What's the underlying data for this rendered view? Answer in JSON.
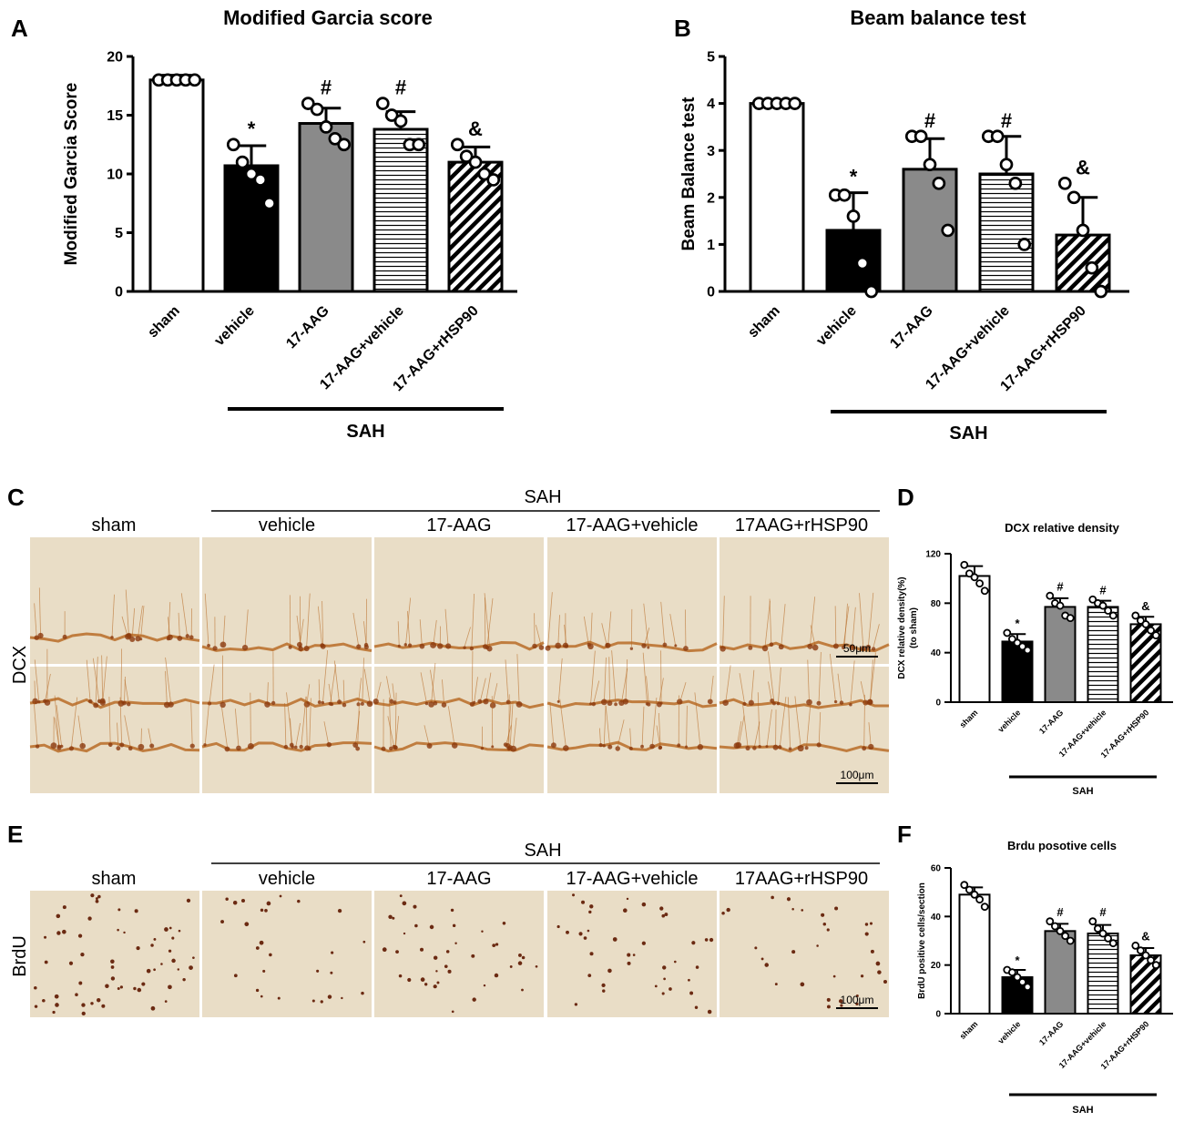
{
  "panels": {
    "A": {
      "letter": "A"
    },
    "B": {
      "letter": "B"
    },
    "C": {
      "letter": "C",
      "group_label": "SAH",
      "row_label": "DCX",
      "column_labels": [
        "sham",
        "vehicle",
        "17-AAG",
        "17-AAG+vehicle",
        "17AAG+rHSP90"
      ],
      "scale_bars": [
        "50μm",
        "100μm"
      ]
    },
    "D": {
      "letter": "D"
    },
    "E": {
      "letter": "E",
      "group_label": "SAH",
      "row_label": "BrdU",
      "column_labels": [
        "sham",
        "vehicle",
        "17-AAG",
        "17-AAG+vehicle",
        "17AAG+rHSP90"
      ],
      "scale_bars": [
        "100μm"
      ]
    },
    "F": {
      "letter": "F"
    }
  },
  "colors": {
    "sham": "#ffffff",
    "vehicle": "#000000",
    "17-AAG": "#8a8a8a",
    "stain_dcx": "#b5651d",
    "stain_brdu": "#6b2a12",
    "tissue_bg": "#e9ddc6"
  },
  "chart_data": [
    {
      "id": "A",
      "type": "bar",
      "title": "Modified Garcia score",
      "ylabel": "Modified Garcia Score",
      "xlabel": "",
      "categories": [
        "sham",
        "vehicle",
        "17-AAG",
        "17-AAG+vehicle",
        "17-AAG+rHSP90"
      ],
      "values": [
        18.0,
        10.7,
        14.3,
        13.8,
        11.0
      ],
      "errors": [
        0.4,
        1.7,
        1.3,
        1.5,
        1.3
      ],
      "points": [
        [
          18,
          18,
          18,
          18,
          18
        ],
        [
          12.5,
          11,
          10,
          9.5,
          7.5
        ],
        [
          16,
          15.5,
          14,
          13,
          12.5
        ],
        [
          16,
          15,
          14.5,
          12.5,
          12.5
        ],
        [
          12.5,
          11.5,
          11,
          10,
          9.5
        ]
      ],
      "fill_patterns": [
        "white",
        "black",
        "gray",
        "horizontal-lines",
        "diagonal-lines"
      ],
      "markers": [
        "",
        "*",
        "#",
        "#",
        "&"
      ],
      "ylim": [
        0,
        20
      ],
      "yticks": [
        0,
        5,
        10,
        15,
        20
      ],
      "group_bracket": {
        "label": "SAH",
        "from": "vehicle",
        "to": "17-AAG+rHSP90"
      }
    },
    {
      "id": "B",
      "type": "bar",
      "title": "Beam balance test",
      "ylabel": "Beam Balance test",
      "xlabel": "",
      "categories": [
        "sham",
        "vehicle",
        "17-AAG",
        "17-AAG+vehicle",
        "17-AAG+rHSP90"
      ],
      "values": [
        4.0,
        1.3,
        2.6,
        2.5,
        1.2
      ],
      "errors": [
        0.05,
        0.8,
        0.65,
        0.8,
        0.8
      ],
      "points": [
        [
          4,
          4,
          4,
          4,
          4
        ],
        [
          2.05,
          2.05,
          1.6,
          0.6,
          0
        ],
        [
          3.3,
          3.3,
          2.7,
          2.3,
          1.3
        ],
        [
          3.3,
          3.3,
          2.7,
          2.3,
          1.0
        ],
        [
          2.3,
          2.0,
          1.3,
          0.5,
          0
        ]
      ],
      "fill_patterns": [
        "white",
        "black",
        "gray",
        "horizontal-lines",
        "diagonal-lines"
      ],
      "markers": [
        "",
        "*",
        "#",
        "#",
        "&"
      ],
      "ylim": [
        0,
        5
      ],
      "yticks": [
        0,
        1,
        2,
        3,
        4,
        5
      ],
      "group_bracket": {
        "label": "SAH",
        "from": "vehicle",
        "to": "17-AAG+rHSP90"
      }
    },
    {
      "id": "D",
      "type": "bar",
      "title": "DCX relative density",
      "ylabel": "DCX relative density(%)",
      "ylabel2": "(to sham)",
      "xlabel": "",
      "categories": [
        "sham",
        "vehicle",
        "17-AAG",
        "17-AAG+vehicle",
        "17-AAG+rHSP90"
      ],
      "values": [
        102,
        49,
        77,
        77,
        63
      ],
      "errors": [
        8,
        6,
        7,
        5,
        6
      ],
      "points": [
        [
          111,
          104,
          101,
          96,
          90
        ],
        [
          56,
          51,
          48,
          45,
          42
        ],
        [
          86,
          80,
          78,
          70,
          68
        ],
        [
          83,
          80,
          78,
          74,
          70
        ],
        [
          70,
          66,
          63,
          58,
          54
        ]
      ],
      "fill_patterns": [
        "white",
        "black",
        "gray",
        "horizontal-lines",
        "diagonal-lines"
      ],
      "markers": [
        "",
        "*",
        "#",
        "#",
        "&"
      ],
      "ylim": [
        0,
        120
      ],
      "yticks": [
        0,
        40,
        80,
        120
      ],
      "group_bracket": {
        "label": "SAH",
        "from": "vehicle",
        "to": "17-AAG+rHSP90"
      }
    },
    {
      "id": "F",
      "type": "bar",
      "title": "Brdu posotive cells",
      "ylabel": "BrdU positive cells/section",
      "xlabel": "",
      "categories": [
        "sham",
        "vehicle",
        "17-AAG",
        "17-AAG+vehicle",
        "17-AAG+rHSP90"
      ],
      "values": [
        49,
        15,
        34,
        33,
        24
      ],
      "errors": [
        3,
        3,
        3,
        3.5,
        3
      ],
      "points": [
        [
          53,
          51,
          49,
          47,
          44
        ],
        [
          18,
          17,
          15,
          13,
          11
        ],
        [
          38,
          36,
          34,
          32,
          30
        ],
        [
          38,
          35,
          33,
          31,
          29
        ],
        [
          28,
          26,
          24,
          22,
          20
        ]
      ],
      "fill_patterns": [
        "white",
        "black",
        "gray",
        "horizontal-lines",
        "diagonal-lines"
      ],
      "markers": [
        "",
        "*",
        "#",
        "#",
        "&"
      ],
      "ylim": [
        0,
        60
      ],
      "yticks": [
        0,
        20,
        40,
        60
      ],
      "group_bracket": {
        "label": "SAH",
        "from": "vehicle",
        "to": "17-AAG+rHSP90"
      }
    }
  ]
}
